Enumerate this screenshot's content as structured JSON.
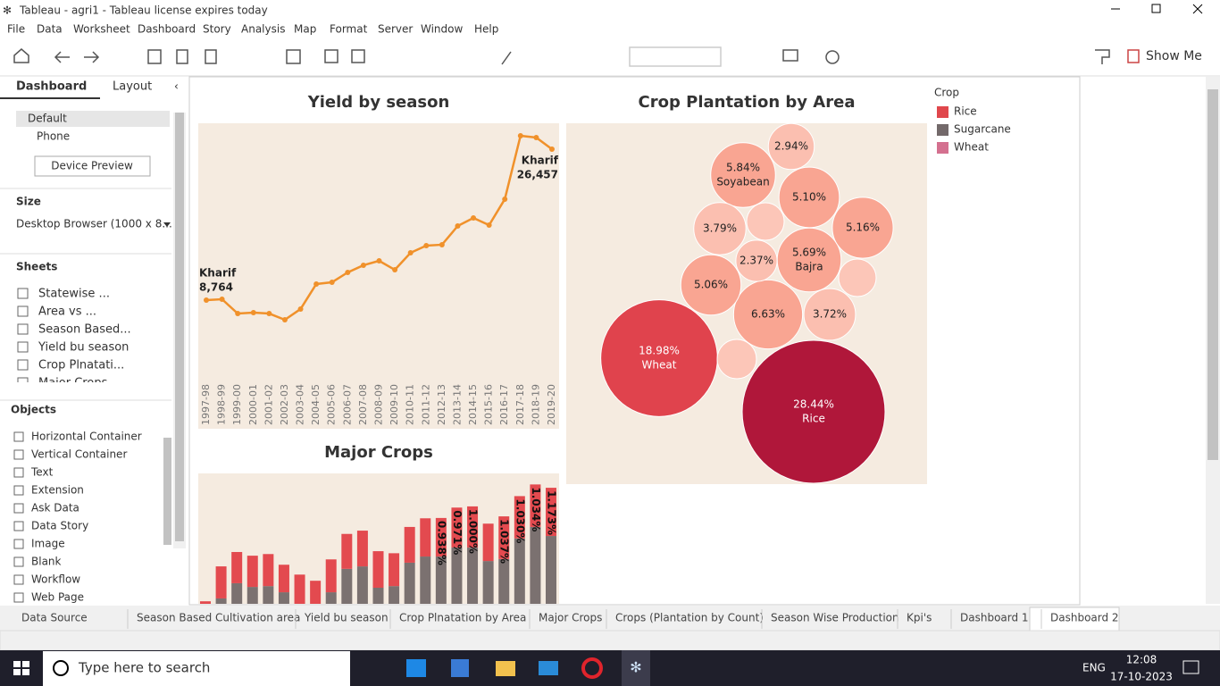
{
  "window": {
    "title": "Tableau - agri1 - Tableau license expires today"
  },
  "menu": [
    "File",
    "Data",
    "Worksheet",
    "Dashboard",
    "Story",
    "Analysis",
    "Map",
    "Format",
    "Server",
    "Window",
    "Help"
  ],
  "toolbar": {
    "show_me": "Show Me"
  },
  "sidebar": {
    "tabs": [
      "Dashboard",
      "Layout"
    ],
    "devices": [
      "Default",
      "Phone"
    ],
    "device_preview": "Device Preview",
    "size_title": "Size",
    "size_value": "Desktop Browser (1000 x 8...",
    "sheets_title": "Sheets",
    "sheets": [
      "Statewise ...",
      "Area vs ...",
      "Season Based...",
      "Yield bu season",
      "Crop Plnatati...",
      "Major Crops"
    ],
    "objects_title": "Objects",
    "objects": [
      "Horizontal Container",
      "Vertical Container",
      "Text",
      "Extension",
      "Ask Data",
      "Data Story",
      "Image",
      "Blank",
      "Workflow",
      "Web Page"
    ]
  },
  "legend": {
    "title": "Crop",
    "items": [
      {
        "name": "Rice",
        "color": "#e0474c"
      },
      {
        "name": "Sugarcane",
        "color": "#73696a"
      },
      {
        "name": "Wheat",
        "color": "#d4708f"
      }
    ]
  },
  "tabs": [
    "Data Source",
    "Season Based Cultivation area",
    "Yield bu season",
    "Crop Plnatation by Area",
    "Major Crops",
    "Crops (Plantation by Count)",
    "Season Wise Production",
    "Kpi's",
    "Dashboard 1",
    "Dashboard 2"
  ],
  "taskbar": {
    "search": "Type here to search",
    "language": "ENG",
    "time": "12:08",
    "date": "17-10-2023"
  },
  "chart_data": [
    {
      "type": "line",
      "title": "Yield by season",
      "categories": [
        "1997-98",
        "1998-99",
        "1999-00",
        "2000-01",
        "2001-02",
        "2002-03",
        "2003-04",
        "2004-05",
        "2005-06",
        "2006-07",
        "2007-08",
        "2008-09",
        "2009-10",
        "2010-11",
        "2011-12",
        "2012-13",
        "2013-14",
        "2014-15",
        "2015-16",
        "2016-17",
        "2017-18",
        "2018-19",
        "2019-20"
      ],
      "series": [
        {
          "name": "Kharif",
          "color": "#f0912b",
          "values": [
            8764,
            8870,
            7190,
            7300,
            7190,
            6460,
            7720,
            10650,
            10860,
            12010,
            12850,
            13370,
            12320,
            14310,
            15150,
            15260,
            17450,
            18400,
            17560,
            20600,
            28030,
            27820,
            26457
          ],
          "value_labels": [
            "8,764",
            null,
            null,
            null,
            null,
            null,
            null,
            null,
            null,
            null,
            null,
            null,
            null,
            null,
            null,
            null,
            null,
            null,
            null,
            null,
            null,
            null,
            "26,457"
          ]
        }
      ]
    },
    {
      "type": "bubble",
      "title": "Crop Plantation by Area",
      "values": [
        28.44,
        18.98,
        6.63,
        5.84,
        5.69,
        5.16,
        5.1,
        5.06,
        3.79,
        3.72,
        2.94,
        2.37,
        1.96,
        1.96,
        2.15
      ],
      "value_labels": [
        "28.44%",
        "18.98%",
        "6.63%",
        "5.84%",
        "5.69%",
        "5.16%",
        "5.10%",
        "5.06%",
        "3.79%",
        "3.72%",
        "2.94%",
        "2.37%",
        null,
        null,
        null
      ],
      "labels": [
        "Rice",
        "Wheat",
        null,
        "Soyabean",
        "Bajra",
        null,
        null,
        null,
        null,
        null,
        null,
        null,
        null,
        null,
        null
      ],
      "colors": [
        "#b0173a",
        "#e0434d",
        "#f9a592",
        "#f9a592",
        "#f9a592",
        "#f9a592",
        "#f9a592",
        "#f9a592",
        "#fbbfb0",
        "#fbbfb0",
        "#fbbfb0",
        "#fbbfb0",
        "#fcc6b8",
        "#fcc6b8",
        "#fcc6b8"
      ]
    },
    {
      "type": "stacked_bar",
      "title": "Major Crops",
      "series": [
        {
          "color": "#7b7170",
          "values": [
            1.52,
            1.74,
            2.11,
            2.02,
            2.04,
            1.89,
            1.52,
            1.3,
            1.89,
            2.46,
            2.52,
            2.0,
            2.04,
            2.61,
            2.76,
            2.76,
            2.98,
            2.98,
            2.65,
            2.7,
            3.2,
            3.48,
            3.26
          ]
        },
        {
          "color": "#e34a4f",
          "values": [
            0.15,
            0.78,
            0.76,
            0.76,
            0.78,
            0.67,
            0.8,
            0.87,
            0.8,
            0.85,
            0.87,
            0.89,
            0.8,
            0.87,
            0.93,
            0.938,
            0.971,
            1.0,
            0.91,
            1.037,
            1.03,
            1.034,
            1.173
          ],
          "value_labels": [
            null,
            null,
            null,
            null,
            null,
            null,
            null,
            null,
            null,
            null,
            null,
            null,
            null,
            null,
            null,
            "0.938%",
            "0.971%",
            "1.000%",
            null,
            "1.037%",
            "1.030%",
            "1.034%",
            "1.173%"
          ]
        }
      ]
    }
  ]
}
